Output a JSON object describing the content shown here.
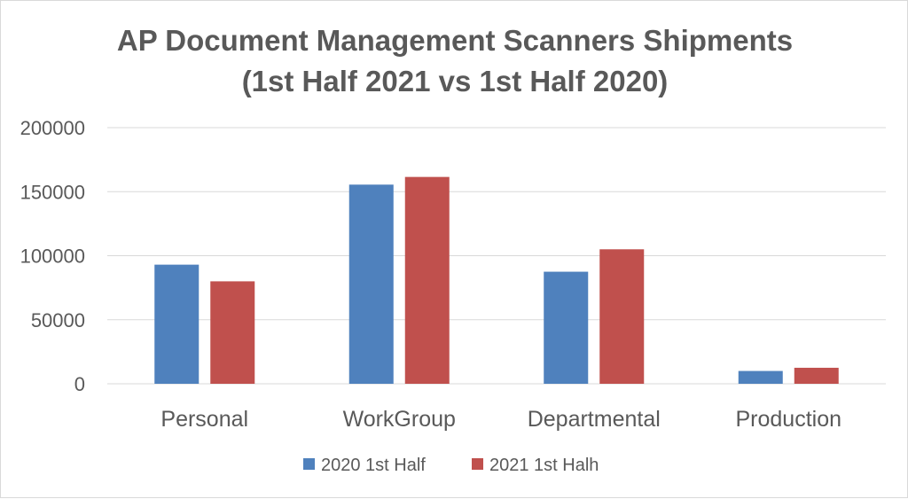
{
  "chart_data": {
    "type": "bar",
    "title": "AP Document Management Scanners Shipments",
    "subtitle": "(1st Half 2021 vs 1st Half 2020)",
    "xlabel": "",
    "ylabel": "",
    "categories": [
      "Personal",
      "WorkGroup",
      "Departmental",
      "Production"
    ],
    "series": [
      {
        "name": "2020 1st Half",
        "color": "#4f81bd",
        "values": [
          93000,
          155500,
          87500,
          10000
        ]
      },
      {
        "name": "2021 1st Halh",
        "color": "#c0504d",
        "values": [
          80000,
          161500,
          105000,
          12500
        ]
      }
    ],
    "ylim": [
      0,
      200000
    ],
    "yticks": [
      "0",
      "50000",
      "100000",
      "150000",
      "200000"
    ],
    "grid": true,
    "legend": "bottom"
  }
}
